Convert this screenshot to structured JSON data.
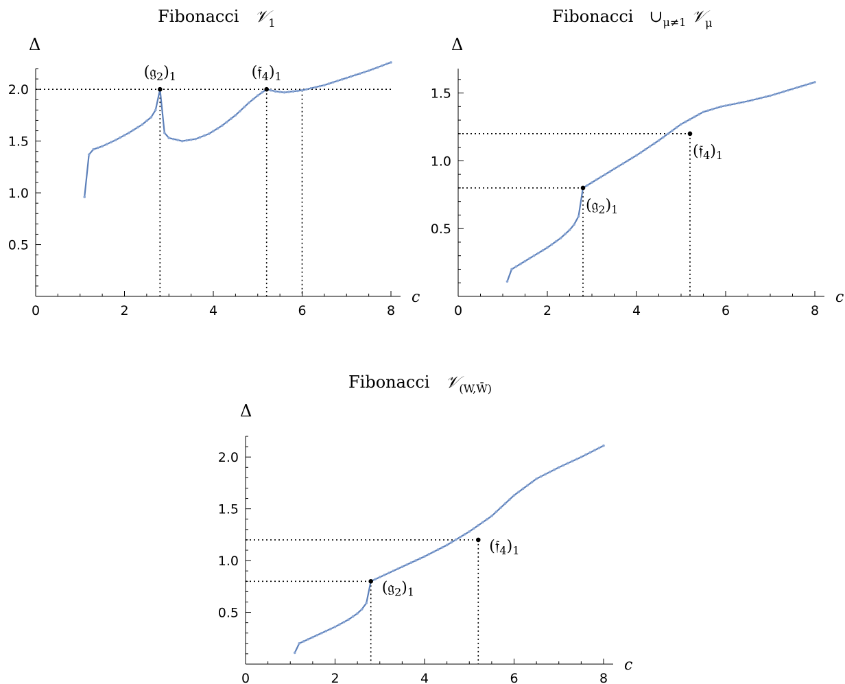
{
  "chart_data": [
    {
      "type": "line",
      "title": "Fibonacci",
      "title_symbol": "𝒱",
      "title_subscript": "1",
      "xlabel": "c",
      "ylabel": "Δ",
      "xlim": [
        0,
        8
      ],
      "ylim": [
        0,
        2.2
      ],
      "xticks": [
        0,
        2,
        4,
        6,
        8
      ],
      "yticks": [
        0.5,
        1.0,
        1.5,
        2.0
      ],
      "xtick_labels": [
        "0",
        "2",
        "4",
        "6",
        "8"
      ],
      "ytick_labels": [
        "0.5",
        "1.0",
        "1.5",
        "2.0"
      ],
      "grid": false,
      "series": [
        {
          "x": [
            1.1,
            1.2,
            1.3,
            1.5,
            1.8,
            2.1,
            2.4,
            2.6,
            2.7,
            2.8,
            2.9,
            3.0,
            3.3,
            3.6,
            3.9,
            4.2,
            4.5,
            4.8,
            5.0,
            5.2,
            5.4,
            5.6,
            5.8,
            6.0,
            6.5,
            7.0,
            7.5,
            8.0
          ],
          "y": [
            0.96,
            1.37,
            1.42,
            1.45,
            1.51,
            1.58,
            1.66,
            1.73,
            1.8,
            2.0,
            1.58,
            1.53,
            1.5,
            1.52,
            1.57,
            1.65,
            1.75,
            1.87,
            1.94,
            2.0,
            1.98,
            1.97,
            1.98,
            1.99,
            2.04,
            2.11,
            2.18,
            2.26
          ]
        }
      ],
      "reference_lines": [
        {
          "type": "h",
          "y": 2.0
        },
        {
          "type": "v",
          "x": 2.8
        },
        {
          "type": "v",
          "x": 5.2
        },
        {
          "type": "v",
          "x": 6.0
        }
      ],
      "annotations": [
        {
          "x": 2.8,
          "y": 2.0,
          "text": "(𝔤",
          "sub": "2",
          "suffix": ")",
          "sub2": "1",
          "pos": "above"
        },
        {
          "x": 5.2,
          "y": 2.0,
          "text": "(𝔣",
          "sub": "4",
          "suffix": ")",
          "sub2": "1",
          "pos": "above"
        }
      ]
    },
    {
      "type": "line",
      "title": "Fibonacci",
      "title_prefix": "∪",
      "title_prefix_sub": "μ≠1",
      "title_symbol": "𝒱",
      "title_subscript": "μ",
      "xlabel": "c",
      "ylabel": "Δ",
      "xlim": [
        0,
        8
      ],
      "ylim": [
        0,
        1.68
      ],
      "xticks": [
        0,
        2,
        4,
        6,
        8
      ],
      "yticks": [
        0.5,
        1.0,
        1.5
      ],
      "xtick_labels": [
        "0",
        "2",
        "4",
        "6",
        "8"
      ],
      "ytick_labels": [
        "0.5",
        "1.0",
        "1.5"
      ],
      "grid": false,
      "series": [
        {
          "x": [
            1.1,
            1.2,
            1.4,
            1.7,
            2.0,
            2.3,
            2.5,
            2.6,
            2.7,
            2.8,
            3.0,
            3.5,
            4.0,
            4.5,
            5.0,
            5.5,
            5.9,
            6.5,
            7.0,
            7.5,
            8.0
          ],
          "y": [
            0.11,
            0.2,
            0.24,
            0.3,
            0.36,
            0.43,
            0.49,
            0.53,
            0.59,
            0.8,
            0.84,
            0.94,
            1.04,
            1.15,
            1.27,
            1.36,
            1.4,
            1.44,
            1.48,
            1.53,
            1.58
          ]
        }
      ],
      "reference_lines": [
        {
          "type": "h",
          "y": 1.2
        },
        {
          "type": "h",
          "y": 0.8
        },
        {
          "type": "v",
          "x": 2.8
        },
        {
          "type": "v",
          "x": 5.2
        }
      ],
      "annotations": [
        {
          "x": 2.8,
          "y": 0.8,
          "text": "(𝔤",
          "sub": "2",
          "suffix": ")",
          "sub2": "1",
          "pos": "below-right"
        },
        {
          "x": 5.2,
          "y": 1.2,
          "text": "(𝔣",
          "sub": "4",
          "suffix": ")",
          "sub2": "1",
          "pos": "below-right"
        }
      ]
    },
    {
      "type": "line",
      "title": "Fibonacci",
      "title_symbol": "𝒱",
      "title_subscript": "(W,W̄)",
      "xlabel": "c",
      "ylabel": "Δ",
      "xlim": [
        0,
        8
      ],
      "ylim": [
        0,
        2.2
      ],
      "xticks": [
        0,
        2,
        4,
        6,
        8
      ],
      "yticks": [
        0.5,
        1.0,
        1.5,
        2.0
      ],
      "xtick_labels": [
        "0",
        "2",
        "4",
        "6",
        "8"
      ],
      "ytick_labels": [
        "0.5",
        "1.0",
        "1.5",
        "2.0"
      ],
      "grid": false,
      "series": [
        {
          "x": [
            1.1,
            1.2,
            1.4,
            1.7,
            2.0,
            2.3,
            2.5,
            2.6,
            2.7,
            2.8,
            3.0,
            3.5,
            4.0,
            4.5,
            5.0,
            5.5,
            6.0,
            6.5,
            7.0,
            7.5,
            8.0
          ],
          "y": [
            0.11,
            0.2,
            0.24,
            0.3,
            0.36,
            0.43,
            0.49,
            0.53,
            0.59,
            0.8,
            0.84,
            0.94,
            1.04,
            1.15,
            1.28,
            1.43,
            1.63,
            1.79,
            1.9,
            2.0,
            2.11
          ]
        }
      ],
      "reference_lines": [
        {
          "type": "h",
          "y": 1.2
        },
        {
          "type": "h",
          "y": 0.8
        },
        {
          "type": "v",
          "x": 2.8
        },
        {
          "type": "v",
          "x": 5.2
        }
      ],
      "annotations": [
        {
          "x": 2.8,
          "y": 0.8,
          "text": "(𝔤",
          "sub": "2",
          "suffix": ")",
          "sub2": "1",
          "pos": "right"
        },
        {
          "x": 5.2,
          "y": 1.2,
          "text": "(𝔣",
          "sub": "4",
          "suffix": ")",
          "sub2": "1",
          "pos": "right"
        }
      ]
    }
  ]
}
